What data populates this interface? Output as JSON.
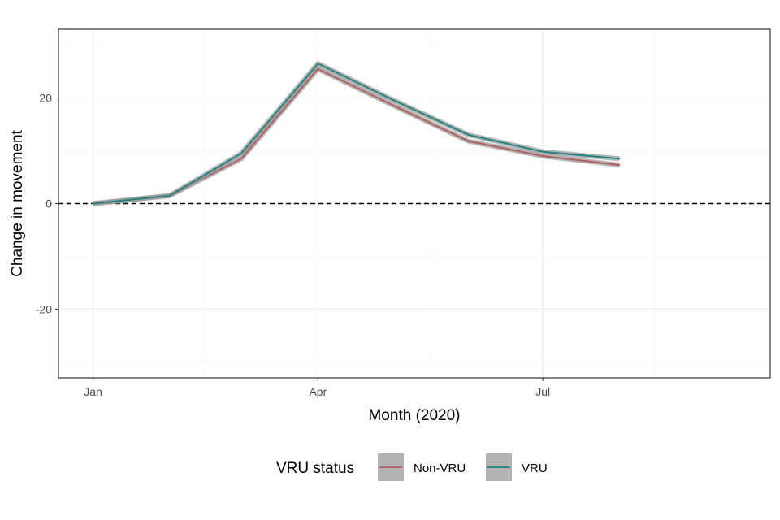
{
  "chart_data": {
    "type": "line",
    "title": "",
    "xlabel": "Month (2020)",
    "ylabel": "Change in movement",
    "x": [
      "2020-01",
      "2020-02",
      "2020-03",
      "2020-04",
      "2020-05",
      "2020-06",
      "2020-07",
      "2020-08",
      "2020-09"
    ],
    "x_tick_labels": [
      {
        "x": "2020-01",
        "label": "Jan"
      },
      {
        "x": "2020-04",
        "label": "Apr"
      },
      {
        "x": "2020-07",
        "label": "Jul"
      }
    ],
    "y_ticks": [
      {
        "value": -20,
        "label": "-20"
      },
      {
        "value": 0,
        "label": "0"
      },
      {
        "value": 20,
        "label": "20"
      }
    ],
    "xlim": [
      "2019-12-18",
      "2020-10-01"
    ],
    "ylim": [
      -33,
      33
    ],
    "reference_line": {
      "y": 0,
      "style": "dashed"
    },
    "grid": true,
    "legend": {
      "title": "VRU status",
      "position": "bottom"
    },
    "series": [
      {
        "name": "Non-VRU",
        "color": "#b35a5a",
        "band_color": "#999999",
        "values": [
          0,
          1.5,
          8.5,
          25.5,
          18.7,
          11.8,
          9.0,
          7.3,
          null
        ]
      },
      {
        "name": "VRU",
        "color": "#1a8080",
        "band_color": "#999999",
        "values": [
          0,
          1.5,
          9.5,
          26.5,
          19.7,
          13.0,
          9.8,
          8.5,
          null
        ]
      }
    ]
  },
  "colors": {
    "panel_border": "#333333",
    "grid_major": "#ebebeb",
    "grid_minor": "#f2f2f2",
    "zero_line": "#000000"
  }
}
